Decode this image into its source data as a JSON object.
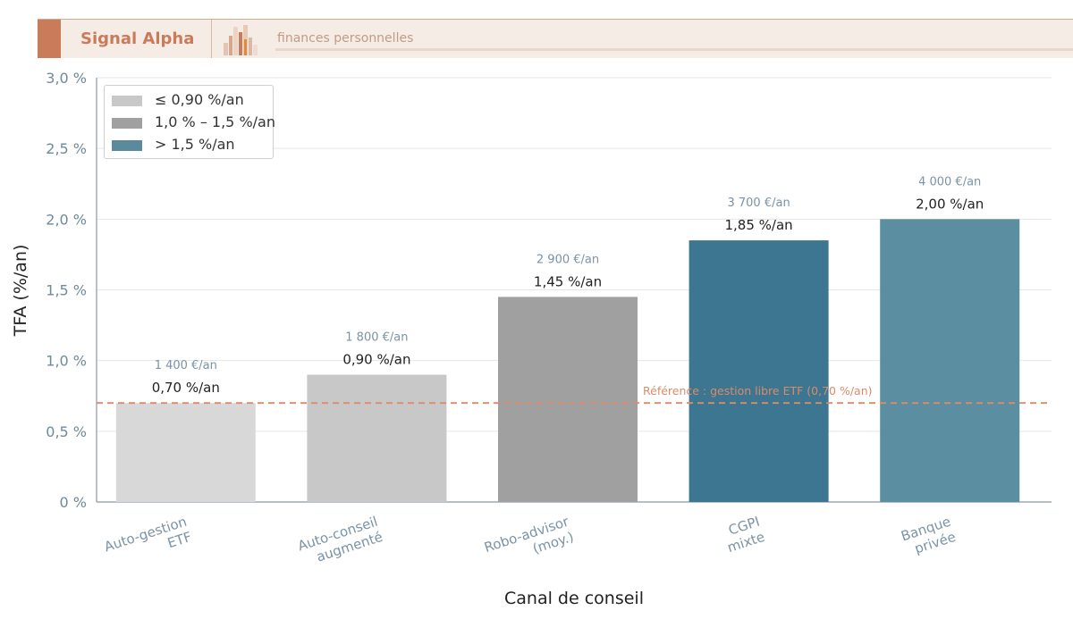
{
  "header": {
    "brand": "Signal Alpha",
    "tagline": "finances personnelles",
    "accent_color": "#c97b5a"
  },
  "legend": [
    {
      "label": "≤ 0,90 %/an",
      "color": "#c8c8c8"
    },
    {
      "label": "1,0 % – 1,5 %/an",
      "color": "#a0a0a0"
    },
    {
      "label": "> 1,5 %/an",
      "color": "#5b8a9d"
    }
  ],
  "chart_data": {
    "type": "bar",
    "xlabel": "Canal de conseil",
    "ylabel": "TFA (%/an)",
    "ylim": [
      0,
      3.0
    ],
    "yticks": [
      "0 %",
      "0,5 %",
      "1,0 %",
      "1,5 %",
      "2,0 %",
      "2,5 %",
      "3,0 %"
    ],
    "grid": true,
    "legend_position": "top-left",
    "categories": [
      [
        "Auto-gestion",
        "ETF"
      ],
      [
        "Auto-conseil",
        "augmenté"
      ],
      [
        "Robo-advisor",
        "(moy.)"
      ],
      [
        "CGPI",
        "mixte"
      ],
      [
        "Banque",
        "privée"
      ]
    ],
    "values": [
      0.7,
      0.9,
      1.45,
      1.85,
      2.0
    ],
    "value_labels": [
      "0,70 %/an",
      "0,90 %/an",
      "1,45 %/an",
      "1,85 %/an",
      "2,00 %/an"
    ],
    "cost_labels": [
      "1 400 €/an",
      "1 800 €/an",
      "2 900 €/an",
      "3 700 €/an",
      "4 000 €/an"
    ],
    "bar_colors": [
      "#d8d8d8",
      "#c8c8c8",
      "#a0a0a0",
      "#3d7690",
      "#5b8ea0"
    ],
    "reference": {
      "value": 0.7,
      "label": "Référence : gestion libre ETF (0,70 %/an)",
      "color": "#d98b6a"
    }
  }
}
